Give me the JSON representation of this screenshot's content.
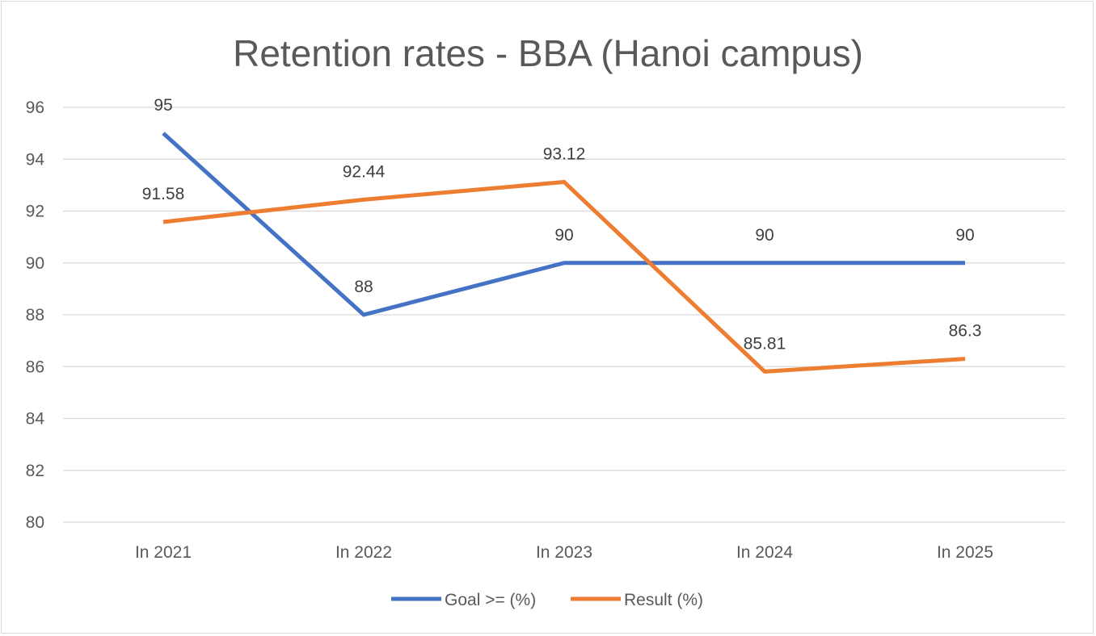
{
  "chart_data": {
    "type": "line",
    "title": "Retention rates - BBA (Hanoi campus)",
    "xlabel": "",
    "ylabel": "",
    "categories": [
      "In 2021",
      "In 2022",
      "In 2023",
      "In 2024",
      "In 2025"
    ],
    "series": [
      {
        "name": "Goal >= (%)",
        "color": "#4472C4",
        "values": [
          95,
          88,
          90,
          90,
          90
        ],
        "labels": [
          "95",
          "88",
          "90",
          "90",
          "90"
        ]
      },
      {
        "name": "Result (%)",
        "color": "#ED7D31",
        "values": [
          91.58,
          92.44,
          93.12,
          85.81,
          86.3
        ],
        "labels": [
          "91.58",
          "92.44",
          "93.12",
          "85.81",
          "86.3"
        ]
      }
    ],
    "ylim": [
      80,
      96
    ],
    "yticks": [
      "80",
      "82",
      "84",
      "86",
      "88",
      "90",
      "92",
      "94",
      "96"
    ],
    "grid": true,
    "legend": "bottom-center"
  }
}
